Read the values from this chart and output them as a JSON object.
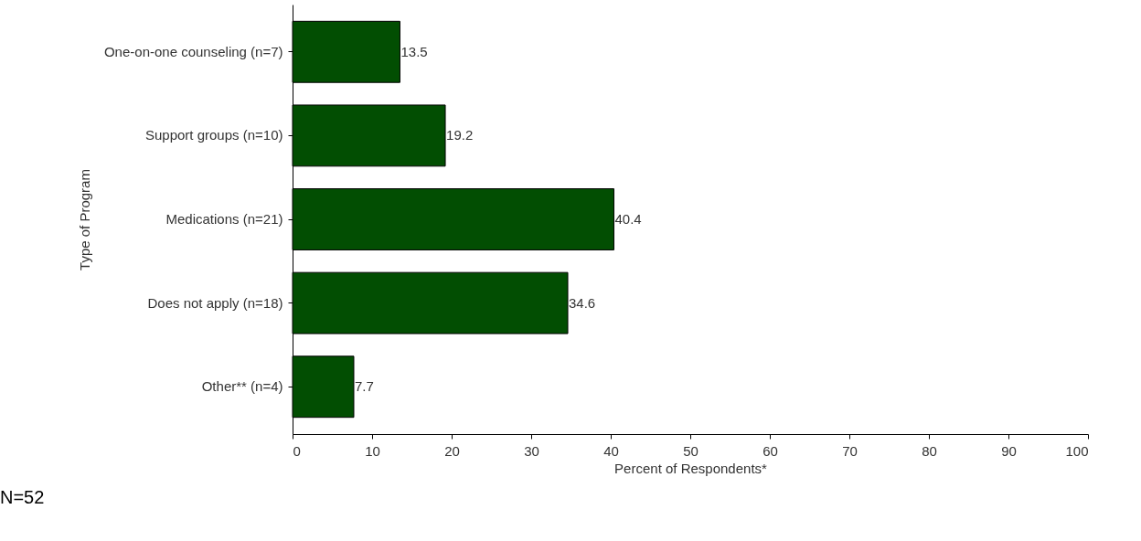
{
  "chart_data": {
    "type": "bar",
    "orientation": "horizontal",
    "categories": [
      "One-on-one counseling (n=7)",
      "Support groups (n=10)",
      "Medications (n=21)",
      "Does not apply (n=18)",
      "Other** (n=4)"
    ],
    "values": [
      13.5,
      19.2,
      40.4,
      34.6,
      7.7
    ],
    "color": "#024e02",
    "xlim": [
      0,
      100
    ],
    "xticks": [
      0,
      10,
      20,
      30,
      40,
      50,
      60,
      70,
      80,
      90,
      100
    ],
    "xlabel": "Percent of Respondents*",
    "ylabel": "Type of Program",
    "data_labels": true,
    "grid": false,
    "annotations": [
      "N=52"
    ]
  }
}
